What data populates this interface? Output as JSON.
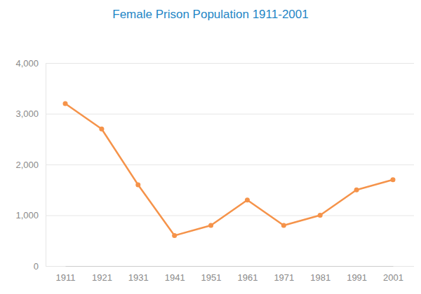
{
  "chart_data": {
    "type": "line",
    "title": "Female Prison Population 1911-2001",
    "categories": [
      "1911",
      "1921",
      "1931",
      "1941",
      "1951",
      "1961",
      "1971",
      "1981",
      "1991",
      "2001"
    ],
    "values": [
      3200,
      2700,
      1600,
      600,
      800,
      1300,
      800,
      1000,
      1500,
      1700
    ],
    "color": "#f5934a",
    "marker": "circle",
    "ylim": [
      0,
      4000
    ],
    "yticks": [
      0,
      {
        "value": 1000,
        "label": "1,000"
      },
      {
        "value": 2000,
        "label": "2,000"
      },
      {
        "value": 3000,
        "label": "3,000"
      },
      {
        "value": 4000,
        "label": "4,000"
      }
    ],
    "grid": true
  }
}
